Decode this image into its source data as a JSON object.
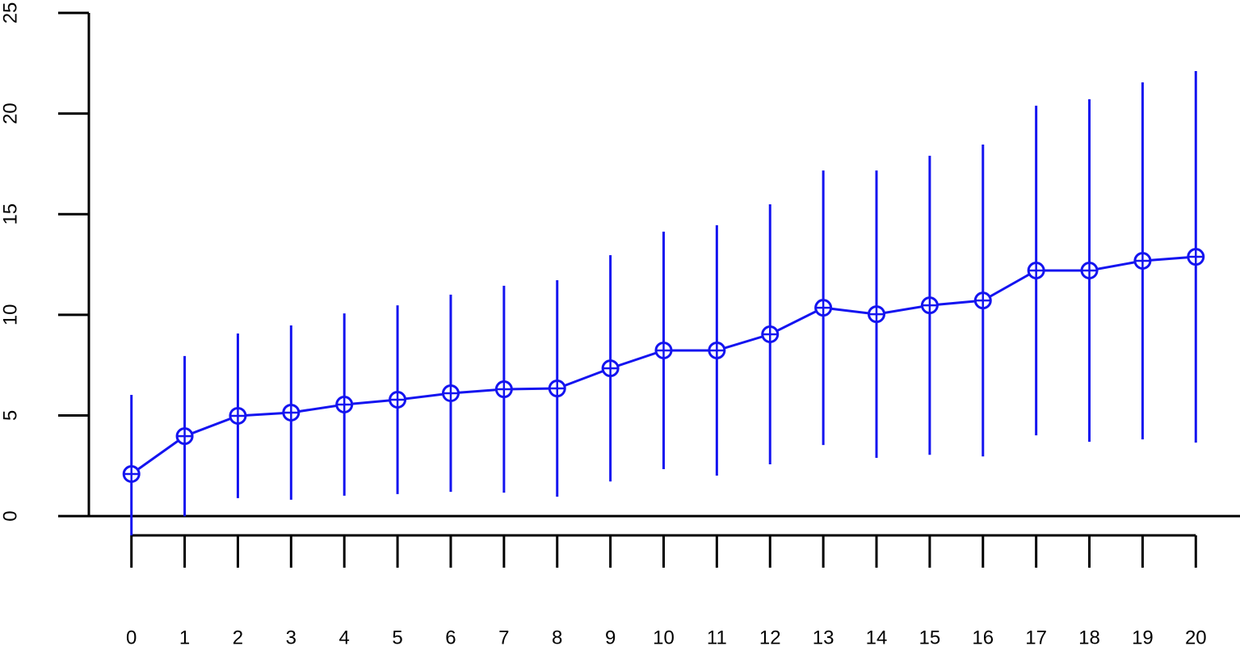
{
  "chart_data": {
    "type": "line",
    "x": [
      0,
      1,
      2,
      3,
      4,
      5,
      6,
      7,
      8,
      9,
      10,
      11,
      12,
      13,
      14,
      15,
      16,
      17,
      18,
      19,
      20
    ],
    "series": [
      {
        "color": "#1414f0",
        "values": [
          2.09,
          3.97,
          4.98,
          5.14,
          5.54,
          5.78,
          6.1,
          6.3,
          6.34,
          7.34,
          8.23,
          8.23,
          9.03,
          10.35,
          10.03,
          10.47,
          10.71,
          12.2,
          12.2,
          12.68,
          12.88
        ],
        "errors": [
          3.93,
          3.98,
          4.09,
          4.33,
          4.53,
          4.69,
          4.9,
          5.14,
          5.38,
          5.62,
          5.9,
          6.22,
          6.46,
          6.82,
          7.14,
          7.43,
          7.75,
          8.19,
          8.51,
          8.87,
          9.23
        ]
      }
    ],
    "xlim": [
      -0.8,
      20.8
    ],
    "ylim": [
      -0.96,
      25.64
    ],
    "xticks": [
      0,
      1,
      2,
      3,
      4,
      5,
      6,
      7,
      8,
      9,
      10,
      11,
      12,
      13,
      14,
      15,
      16,
      17,
      18,
      19,
      20
    ],
    "yticks": [
      0,
      5,
      10,
      15,
      20,
      25
    ]
  }
}
